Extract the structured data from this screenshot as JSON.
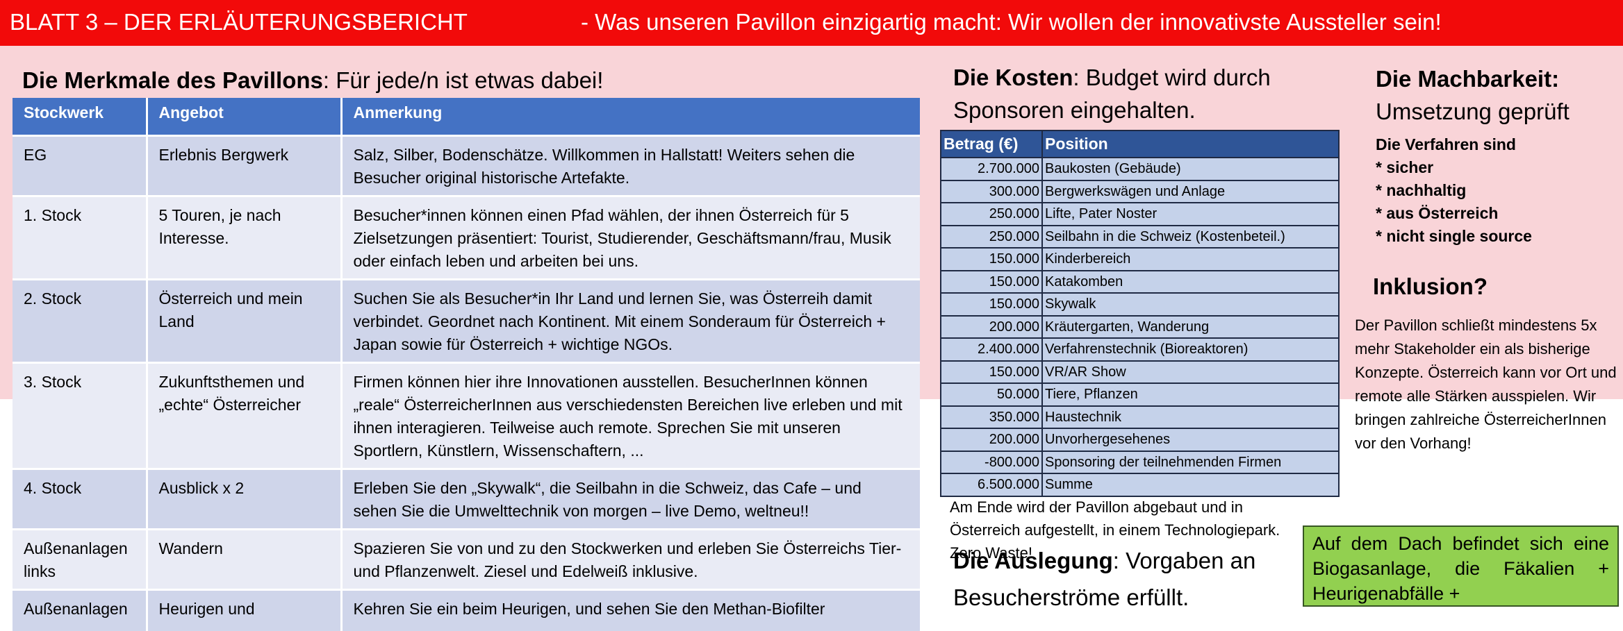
{
  "title": {
    "left": "BLATT 3 – DER ERLÄUTERUNGSBERICHT",
    "right": "- Was unseren Pavillon einzigartig macht: Wir wollen der innovativste Aussteller sein!"
  },
  "features": {
    "heading_bold": "Die Merkmale des Pavillons",
    "heading_rest": ": Für jede/n ist etwas dabei!",
    "columns": [
      "Stockwerk",
      "Angebot",
      "Anmerkung"
    ],
    "rows": [
      [
        "EG",
        "Erlebnis Bergwerk",
        "Salz, Silber, Bodenschätze. Willkommen in Hallstatt! Weiters sehen die Besucher original historische Artefakte."
      ],
      [
        "1. Stock",
        "5 Touren, je nach Interesse.",
        "Besucher*innen können einen Pfad wählen, der ihnen Österreich für 5 Zielsetzungen präsentiert: Tourist, Studierender, Geschäftsmann/frau, Musik oder einfach leben und arbeiten bei uns."
      ],
      [
        "2. Stock",
        "Österreich und mein Land",
        "Suchen Sie als Besucher*in Ihr Land und lernen Sie, was Österreih damit verbindet. Geordnet nach Kontinent. Mit einem Sonderaum für Österreich + Japan sowie für Österreich + wichtige NGOs."
      ],
      [
        "3. Stock",
        "Zukunftsthemen und „echte“ Österreicher",
        "Firmen können hier ihre Innovationen ausstellen. BesucherInnen können „reale“ ÖsterreicherInnen aus verschiedensten Bereichen live erleben und mit ihnen interagieren. Teilweise auch remote. Sprechen Sie mit unseren Sportlern, Künstlern, Wissenschaftern, ..."
      ],
      [
        "4. Stock",
        "Ausblick x 2",
        "Erleben Sie den „Skywalk“, die Seilbahn in die Schweiz, das Cafe – und sehen Sie die Umwelttechnik von morgen – live Demo, weltneu!!"
      ],
      [
        "Außenanlagen links",
        "Wandern",
        "Spazieren Sie von und zu den Stockwerken und erleben Sie Österreichs Tier- und Pflanzenwelt. Ziesel und Edelweiß inklusive."
      ],
      [
        "Außenanlagen",
        "Heurigen und",
        "Kehren Sie ein beim Heurigen, und sehen Sie den Methan-Biofilter"
      ]
    ]
  },
  "costs": {
    "heading_bold": "Die Kosten",
    "heading_rest": ": Budget wird durch",
    "heading_line2": "Sponsoren eingehalten.",
    "columns": [
      "Betrag (€)",
      "Position"
    ],
    "rows": [
      [
        "2.700.000",
        "Baukosten (Gebäude)"
      ],
      [
        "300.000",
        "Bergwerkswägen und Anlage"
      ],
      [
        "250.000",
        "Lifte, Pater Noster"
      ],
      [
        "250.000",
        "Seilbahn in die Schweiz (Kostenbeteil.)"
      ],
      [
        "150.000",
        "Kinderbereich"
      ],
      [
        "150.000",
        "Katakomben"
      ],
      [
        "150.000",
        "Skywalk"
      ],
      [
        "200.000",
        "Kräutergarten, Wanderung"
      ],
      [
        "2.400.000",
        "Verfahrenstechnik (Bioreaktoren)"
      ],
      [
        "150.000",
        "VR/AR Show"
      ],
      [
        "50.000",
        "Tiere, Pflanzen"
      ],
      [
        "350.000",
        "Haustechnik"
      ],
      [
        "200.000",
        "Unvorhergesehenes"
      ],
      [
        "-800.000",
        "Sponsoring der teilnehmenden Firmen"
      ],
      [
        "6.500.000",
        "Summe"
      ]
    ],
    "note": "Am Ende wird der Pavillon abgebaut und in Österreich aufgestellt, in einem Technologiepark. Zero Waste!"
  },
  "layout_section": {
    "heading_bold": "Die Auslegung",
    "heading_rest": ": Vorgaben an",
    "heading_line2": "Besucherströme erfüllt."
  },
  "feasibility": {
    "heading_bold": "Die Machbarkeit:",
    "heading_line2": "Umsetzung geprüft",
    "intro": "Die Verfahren sind",
    "items": [
      "* sicher",
      "* nachhaltig",
      "* aus Österreich",
      "* nicht single source"
    ]
  },
  "inclusion": {
    "heading": "Inklusion?",
    "text": "Der Pavillon schließt mindestens 5x mehr Stakeholder ein als bisherige Konzepte. Österreich kann vor Ort und remote alle Stärken ausspielen. Wir bringen zahlreiche ÖsterreicherInnen vor den Vorhang!"
  },
  "roof_note": "Auf dem Dach befindet sich eine Biogasanlage, die Fäkalien + Heurigenabfälle +",
  "colors": {
    "title_bar": "#f20a0a",
    "background_band": "#f9d4d8",
    "table_header": "#4472c4",
    "cost_header": "#2f5597",
    "note_box": "#92d050"
  }
}
